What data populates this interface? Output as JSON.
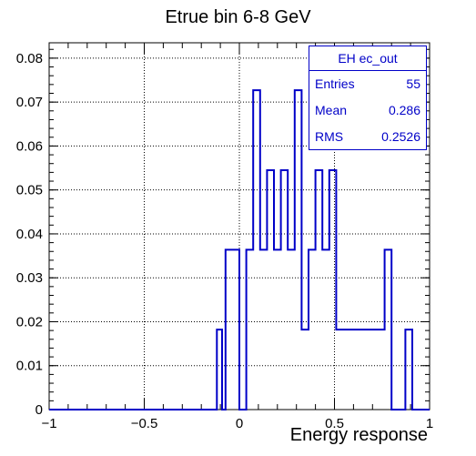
{
  "title": "Etrue bin 6-8 GeV",
  "chart_data": {
    "type": "bar",
    "histtype": "step",
    "title": "Etrue bin 6-8 GeV",
    "xlabel": "Energy response",
    "ylabel": "",
    "xlim": [
      -1,
      1
    ],
    "ylim": [
      0,
      0.0835
    ],
    "grid": true,
    "bin_width": 0.0364,
    "bin_edges": [
      -0.1182,
      -0.0818,
      -0.0727,
      -0.0364,
      0,
      0.0364,
      0.0727,
      0.1091,
      0.1455,
      0.1818,
      0.2182,
      0.2545,
      0.2909,
      0.3273,
      0.3636,
      0.4,
      0.4364,
      0.4727,
      0.5091,
      0.5455,
      0.5818,
      0.6182,
      0.6545,
      0.6909,
      0.7273,
      0.7636,
      0.8,
      0.8364,
      0.8727,
      0.9091
    ],
    "bins": [
      {
        "x0": -0.1182,
        "x1": -0.0909,
        "value": 0.0182
      },
      {
        "x0": -0.0727,
        "x1": -0.0364,
        "value": 0.0364
      },
      {
        "x0": -0.0364,
        "x1": 0.0,
        "value": 0.0364
      },
      {
        "x0": 0.0364,
        "x1": 0.0727,
        "value": 0.0364
      },
      {
        "x0": 0.0727,
        "x1": 0.1091,
        "value": 0.0727
      },
      {
        "x0": 0.1091,
        "x1": 0.1455,
        "value": 0.0364
      },
      {
        "x0": 0.1455,
        "x1": 0.1818,
        "value": 0.0545
      },
      {
        "x0": 0.1818,
        "x1": 0.2182,
        "value": 0.0364
      },
      {
        "x0": 0.2182,
        "x1": 0.2545,
        "value": 0.0545
      },
      {
        "x0": 0.2545,
        "x1": 0.2909,
        "value": 0.0364
      },
      {
        "x0": 0.2909,
        "x1": 0.3273,
        "value": 0.0727
      },
      {
        "x0": 0.3273,
        "x1": 0.3636,
        "value": 0.0182
      },
      {
        "x0": 0.3636,
        "x1": 0.4,
        "value": 0.0364
      },
      {
        "x0": 0.4,
        "x1": 0.4364,
        "value": 0.0545
      },
      {
        "x0": 0.4364,
        "x1": 0.4727,
        "value": 0.0364
      },
      {
        "x0": 0.4727,
        "x1": 0.5091,
        "value": 0.0545
      },
      {
        "x0": 0.5091,
        "x1": 0.5455,
        "value": 0.0182
      },
      {
        "x0": 0.5455,
        "x1": 0.5818,
        "value": 0.0182
      },
      {
        "x0": 0.5818,
        "x1": 0.6545,
        "value": 0.0182
      },
      {
        "x0": 0.6545,
        "x1": 0.6909,
        "value": 0.0182
      },
      {
        "x0": 0.6909,
        "x1": 0.7273,
        "value": 0.0182
      },
      {
        "x0": 0.7273,
        "x1": 0.7636,
        "value": 0.0182
      },
      {
        "x0": 0.7636,
        "x1": 0.8,
        "value": 0.0364
      },
      {
        "x0": 0.8,
        "x1": 0.8364,
        "value": 0.0
      },
      {
        "x0": 0.8364,
        "x1": 0.8727,
        "value": 0.0
      },
      {
        "x0": 0.8727,
        "x1": 0.9091,
        "value": 0.0182
      }
    ],
    "x_ticks": [
      -1,
      -0.5,
      0,
      0.5,
      1
    ],
    "x_tick_labels": [
      "−1",
      "−0.5",
      "0",
      "0.5",
      "1"
    ],
    "y_ticks": [
      0,
      0.01,
      0.02,
      0.03,
      0.04,
      0.05,
      0.06,
      0.07,
      0.08
    ],
    "y_tick_labels": [
      "0",
      "0.01",
      "0.02",
      "0.03",
      "0.04",
      "0.05",
      "0.06",
      "0.07",
      "0.08"
    ],
    "line_color": "#0000c8"
  },
  "stats": {
    "name": "EH ec_out",
    "entries_label": "Entries",
    "entries_value": "55",
    "mean_label": "Mean",
    "mean_value": "0.286",
    "rms_label": "RMS",
    "rms_value": "0.2526"
  }
}
